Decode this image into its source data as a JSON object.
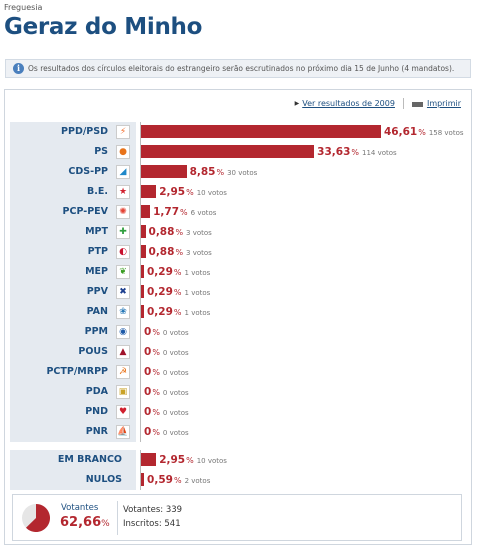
{
  "header": {
    "label": "Freguesia",
    "title": "Geraz do Minho"
  },
  "notice": {
    "icon": "info-icon",
    "text": "Os resultados dos círculos eleitorais do estrangeiro serão escrutinados no próximo dia 15 de Junho (4 mandatos)."
  },
  "toolbar": {
    "previous_results_label": "Ver resultados de 2009",
    "print_label": "Imprimir"
  },
  "colors": {
    "bar": "#b3272f",
    "title": "#1d4f80",
    "label_bg": "#e5eaf0"
  },
  "parties": [
    {
      "name": "PPD/PSD",
      "pct": "46,61",
      "votes": "158 votos",
      "value": 46.61,
      "logo": "psd-logo-icon",
      "glyph": "⚡",
      "color": "#f26522"
    },
    {
      "name": "PS",
      "pct": "33,63",
      "votes": "114 votos",
      "value": 33.63,
      "logo": "ps-logo-icon",
      "glyph": "●",
      "color": "#e8731a"
    },
    {
      "name": "CDS-PP",
      "pct": "8,85",
      "votes": "30 votos",
      "value": 8.85,
      "logo": "cds-logo-icon",
      "glyph": "◢",
      "color": "#1e88c9"
    },
    {
      "name": "B.E.",
      "pct": "2,95",
      "votes": "10 votos",
      "value": 2.95,
      "logo": "be-logo-icon",
      "glyph": "★",
      "color": "#d0202e"
    },
    {
      "name": "PCP-PEV",
      "pct": "1,77",
      "votes": "6 votos",
      "value": 1.77,
      "logo": "cdu-logo-icon",
      "glyph": "✺",
      "color": "#e34234"
    },
    {
      "name": "MPT",
      "pct": "0,88",
      "votes": "3 votos",
      "value": 0.88,
      "logo": "mpt-logo-icon",
      "glyph": "✚",
      "color": "#2e9e3e"
    },
    {
      "name": "PTP",
      "pct": "0,88",
      "votes": "3 votos",
      "value": 0.88,
      "logo": "ptp-logo-icon",
      "glyph": "◐",
      "color": "#c8102e"
    },
    {
      "name": "MEP",
      "pct": "0,29",
      "votes": "1 votos",
      "value": 0.29,
      "logo": "mep-logo-icon",
      "glyph": "❦",
      "color": "#3a9d23"
    },
    {
      "name": "PPV",
      "pct": "0,29",
      "votes": "1 votos",
      "value": 0.29,
      "logo": "ppv-logo-icon",
      "glyph": "✖",
      "color": "#1d3f8f"
    },
    {
      "name": "PAN",
      "pct": "0,29",
      "votes": "1 votos",
      "value": 0.29,
      "logo": "pan-logo-icon",
      "glyph": "❀",
      "color": "#2a7ab8"
    },
    {
      "name": "PPM",
      "pct": "0",
      "votes": "0 votos",
      "value": 0,
      "logo": "ppm-logo-icon",
      "glyph": "◉",
      "color": "#1e5aa8"
    },
    {
      "name": "POUS",
      "pct": "0",
      "votes": "0 votos",
      "value": 0,
      "logo": "pous-logo-icon",
      "glyph": "▲",
      "color": "#a0132a"
    },
    {
      "name": "PCTP/MRPP",
      "pct": "0",
      "votes": "0 votos",
      "value": 0,
      "logo": "pctp-logo-icon",
      "glyph": "☭",
      "color": "#e8731a"
    },
    {
      "name": "PDA",
      "pct": "0",
      "votes": "0 votos",
      "value": 0,
      "logo": "pda-logo-icon",
      "glyph": "▣",
      "color": "#c9a227"
    },
    {
      "name": "PND",
      "pct": "0",
      "votes": "0 votos",
      "value": 0,
      "logo": "pnd-logo-icon",
      "glyph": "♥",
      "color": "#d0202e"
    },
    {
      "name": "PNR",
      "pct": "0",
      "votes": "0 votos",
      "value": 0,
      "logo": "pnr-logo-icon",
      "glyph": "⛵",
      "color": "#1d3f8f"
    }
  ],
  "other": [
    {
      "name": "EM BRANCO",
      "pct": "2,95",
      "votes": "10 votos",
      "value": 2.95
    },
    {
      "name": "NULOS",
      "pct": "0,59",
      "votes": "2 votos",
      "value": 0.59
    }
  ],
  "summary": {
    "votantes_label": "Votantes",
    "votantes_pct": "62,66",
    "turnout_fraction": 0.6266,
    "votantes_line": "Votantes: 339",
    "inscritos_line": "Inscritos: 541"
  },
  "pct_sign": "%"
}
